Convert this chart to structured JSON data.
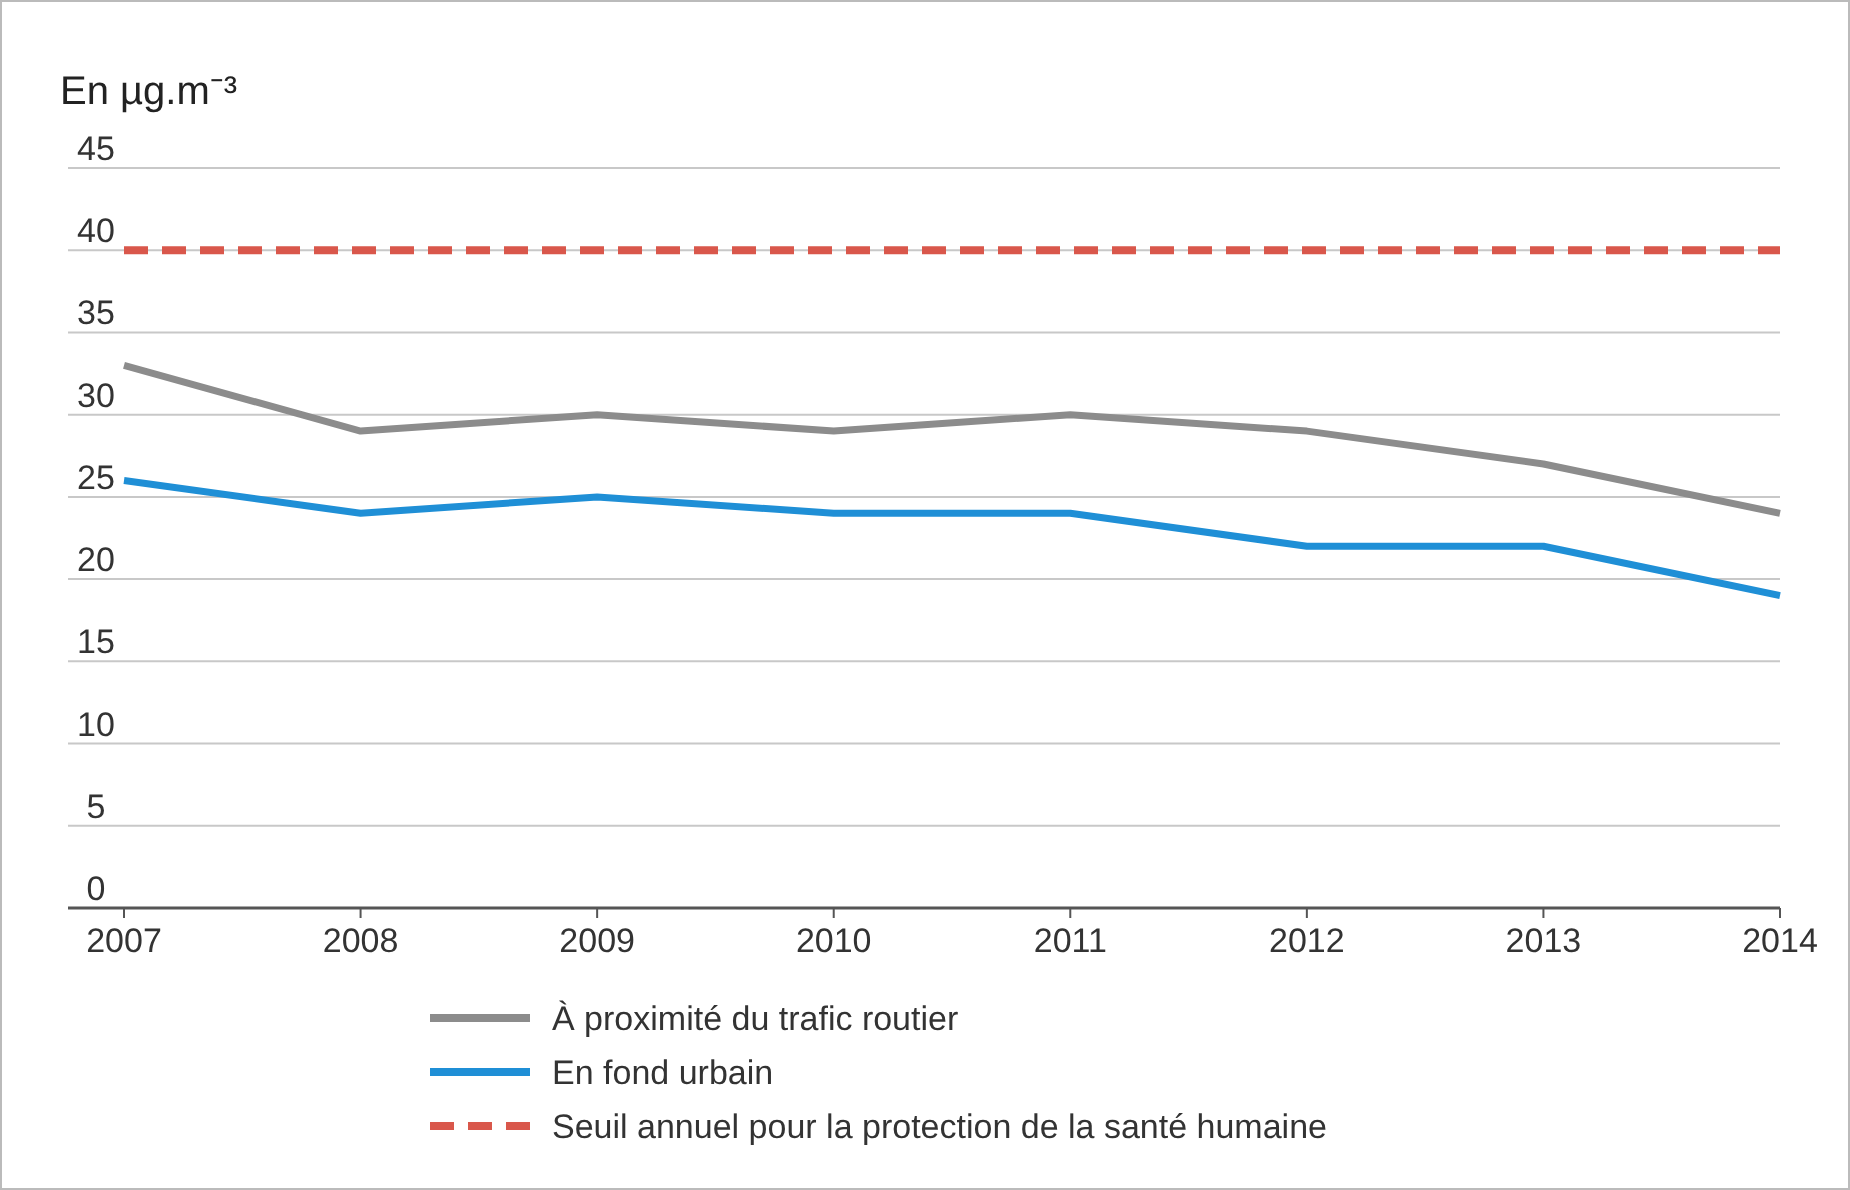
{
  "chart_data": {
    "type": "line",
    "ylabel": "En µg.m⁻³",
    "x": [
      2007,
      2008,
      2009,
      2010,
      2011,
      2012,
      2013,
      2014
    ],
    "xlim": [
      2007,
      2014
    ],
    "xticks": [
      2007,
      2008,
      2009,
      2010,
      2011,
      2012,
      2013,
      2014
    ],
    "ylim": [
      0,
      45
    ],
    "yticks": [
      0,
      5,
      10,
      15,
      20,
      25,
      30,
      35,
      40,
      45
    ],
    "series": [
      {
        "name": "À proximité du trafic routier",
        "color": "#8c8c8c",
        "values": [
          33,
          29,
          30,
          29,
          30,
          29,
          27,
          24
        ]
      },
      {
        "name": "En fond urbain",
        "color": "#1f8fd6",
        "values": [
          26,
          24,
          25,
          24,
          24,
          22,
          22,
          19
        ]
      }
    ],
    "ref_lines": [
      {
        "axis": "y",
        "value": 40,
        "label": "Seuil annuel pour la protection de la santé humaine",
        "color": "#d9574b",
        "line_style": "dashed"
      }
    ],
    "grid": "y",
    "legend": "bottom",
    "marker": "none",
    "line_style": "solid"
  }
}
